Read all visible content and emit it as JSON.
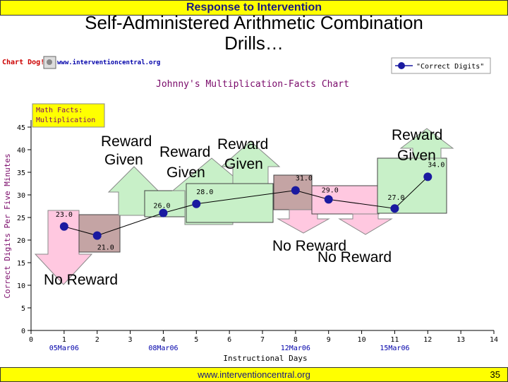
{
  "header": {
    "banner": "Response to Intervention",
    "title_line1": "Self-Administered Arithmetic Combination",
    "title_line2": "Drills…"
  },
  "chartdog": {
    "logo": "Chart Dog!",
    "url": "www.interventioncentral.org"
  },
  "legend": {
    "label": "\"Correct Digits\""
  },
  "chart_data": {
    "type": "line",
    "title": "Johnny's Multiplication-Facts Chart",
    "subtitle_line1": "Math Facts:",
    "subtitle_line2": "Multiplication",
    "xlabel": "Instructional Days",
    "ylabel": "Correct Digits Per Five Minutes",
    "xlim": [
      0,
      14
    ],
    "ylim": [
      0,
      45
    ],
    "x_ticks": [
      0,
      1,
      2,
      3,
      4,
      5,
      6,
      7,
      8,
      9,
      10,
      11,
      12,
      13,
      14
    ],
    "y_ticks": [
      0,
      5,
      10,
      15,
      20,
      25,
      30,
      35,
      40,
      45
    ],
    "date_labels": [
      {
        "x": 1,
        "label": "05Mar06"
      },
      {
        "x": 4,
        "label": "08Mar06"
      },
      {
        "x": 8,
        "label": "12Mar06"
      },
      {
        "x": 11,
        "label": "15Mar06"
      }
    ],
    "series": [
      {
        "name": "\"Correct Digits\"",
        "color": "#1a1aa0",
        "points": [
          {
            "x": 1,
            "y": 23.0
          },
          {
            "x": 2,
            "y": 21.0
          },
          {
            "x": 4,
            "y": 26.0
          },
          {
            "x": 5,
            "y": 28.0
          },
          {
            "x": 8,
            "y": 31.0
          },
          {
            "x": 9,
            "y": 29.0
          },
          {
            "x": 11,
            "y": 27.0
          },
          {
            "x": 12,
            "y": 34.0
          }
        ],
        "point_labels": [
          "23.0",
          "21.0",
          "26.0",
          "28.0",
          "31.0",
          "29.0",
          "27.0",
          "34.0"
        ]
      }
    ],
    "grid": false,
    "legend_position": "top-right"
  },
  "annotations": {
    "reward_1": "Reward",
    "given_1": "Given",
    "reward_2": "Reward",
    "given_2": "Given",
    "reward_3": "Reward",
    "given_3": "Given",
    "reward_4": "Reward",
    "given_4": "Given",
    "no_reward_1": "No Reward",
    "no_reward_2": "No Reward",
    "no_reward_3": "No Reward"
  },
  "footer": {
    "url": "www.interventioncentral.org",
    "page": "35"
  }
}
